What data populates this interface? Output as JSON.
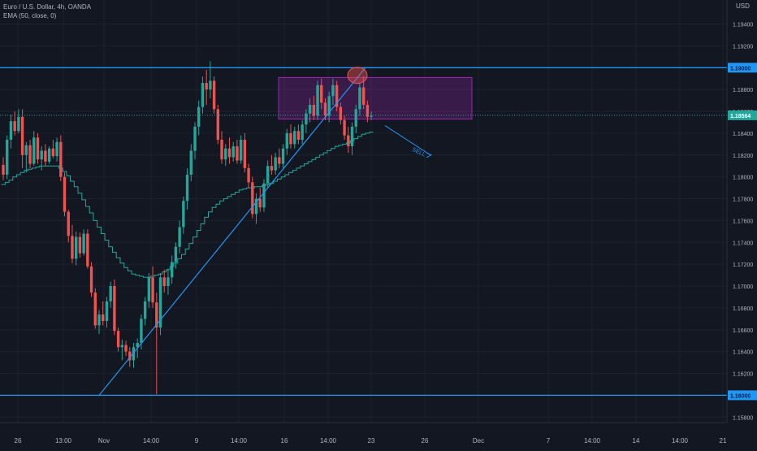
{
  "chart_data": {
    "type": "candlestick",
    "title": "Euro / U.S. Dollar, 4h, OANDA",
    "indicator": "EMA (50, close, 0)",
    "currency": "USD",
    "ylim": [
      1.1575,
      1.1962
    ],
    "y_ticks": [
      "1.19400",
      "1.19200",
      "1.18800",
      "1.18600",
      "1.18400",
      "1.18200",
      "1.18000",
      "1.17800",
      "1.17600",
      "1.17400",
      "1.17200",
      "1.17000",
      "1.16800",
      "1.16600",
      "1.16400",
      "1.16200",
      "1.15800"
    ],
    "x_labels": [
      "26",
      "13:00",
      "Nov",
      "14:00",
      "9",
      "14:00",
      "16",
      "14:00",
      "23",
      "26",
      "Dec",
      "7",
      "14:00",
      "14",
      "14:00",
      "21"
    ],
    "levels": [
      {
        "price": 1.19,
        "label": "1.19000",
        "color": "#2196f3"
      },
      {
        "price": 1.16,
        "label": "1.16000",
        "color": "#2196f3"
      }
    ],
    "last_price": {
      "value": 1.18564,
      "label": "1.18564",
      "color": "#26a69a"
    },
    "annotation": {
      "text": "SELL",
      "color": "#2196f3"
    },
    "zone": {
      "price_high": 1.1891,
      "price_low": 1.1853,
      "color": "#9c27b0"
    },
    "colors": {
      "up": "#26a69a",
      "down": "#ef5350",
      "ema": "#26a69a",
      "background": "#131722",
      "grid": "#1e222d",
      "text": "#b2b5be"
    },
    "candles": [
      [
        1.1811,
        1.1818,
        1.1797,
        1.1802
      ],
      [
        1.1802,
        1.1838,
        1.1798,
        1.1834
      ],
      [
        1.1834,
        1.1857,
        1.1826,
        1.1851
      ],
      [
        1.1851,
        1.186,
        1.1838,
        1.1842
      ],
      [
        1.1842,
        1.1862,
        1.184,
        1.1855
      ],
      [
        1.1855,
        1.1862,
        1.1808,
        1.182
      ],
      [
        1.182,
        1.1832,
        1.1804,
        1.1829
      ],
      [
        1.1829,
        1.1834,
        1.1808,
        1.1812
      ],
      [
        1.1812,
        1.1842,
        1.181,
        1.1836
      ],
      [
        1.1836,
        1.184,
        1.1812,
        1.1816
      ],
      [
        1.1816,
        1.1828,
        1.1806,
        1.1824
      ],
      [
        1.1824,
        1.183,
        1.181,
        1.1814
      ],
      [
        1.1814,
        1.1828,
        1.1812,
        1.1826
      ],
      [
        1.1826,
        1.1834,
        1.1817,
        1.1819
      ],
      [
        1.1819,
        1.1836,
        1.1814,
        1.1832
      ],
      [
        1.1832,
        1.1838,
        1.1796,
        1.18
      ],
      [
        1.18,
        1.1804,
        1.1764,
        1.1768
      ],
      [
        1.1768,
        1.177,
        1.174,
        1.1746
      ],
      [
        1.1746,
        1.1756,
        1.1721,
        1.1725
      ],
      [
        1.1725,
        1.175,
        1.1719,
        1.1745
      ],
      [
        1.1745,
        1.1749,
        1.1726,
        1.173
      ],
      [
        1.173,
        1.1752,
        1.1728,
        1.1748
      ],
      [
        1.1748,
        1.1752,
        1.1716,
        1.1718
      ],
      [
        1.1718,
        1.1722,
        1.169,
        1.1694
      ],
      [
        1.1694,
        1.1698,
        1.1661,
        1.1664
      ],
      [
        1.1664,
        1.1678,
        1.1656,
        1.1674
      ],
      [
        1.1674,
        1.1686,
        1.1664,
        1.1668
      ],
      [
        1.1668,
        1.169,
        1.1662,
        1.1686
      ],
      [
        1.1686,
        1.1704,
        1.168,
        1.17
      ],
      [
        1.17,
        1.1706,
        1.1655,
        1.1659
      ],
      [
        1.1659,
        1.1662,
        1.164,
        1.1644
      ],
      [
        1.1644,
        1.1651,
        1.1632,
        1.1646
      ],
      [
        1.1646,
        1.165,
        1.1636,
        1.164
      ],
      [
        1.164,
        1.1644,
        1.1626,
        1.1632
      ],
      [
        1.1632,
        1.1648,
        1.1625,
        1.1644
      ],
      [
        1.1644,
        1.1652,
        1.1634,
        1.1648
      ],
      [
        1.1648,
        1.1674,
        1.1642,
        1.167
      ],
      [
        1.167,
        1.169,
        1.1664,
        1.1686
      ],
      [
        1.1686,
        1.1712,
        1.168,
        1.1708
      ],
      [
        1.1708,
        1.1718,
        1.168,
        1.1685
      ],
      [
        1.1685,
        1.1694,
        1.1601,
        1.1662
      ],
      [
        1.1662,
        1.1712,
        1.1655,
        1.1708
      ],
      [
        1.1708,
        1.1715,
        1.1694,
        1.17
      ],
      [
        1.17,
        1.1716,
        1.1692,
        1.1708
      ],
      [
        1.1708,
        1.1728,
        1.1702,
        1.1722
      ],
      [
        1.1722,
        1.174,
        1.1716,
        1.1736
      ],
      [
        1.1736,
        1.176,
        1.173,
        1.1754
      ],
      [
        1.1754,
        1.1782,
        1.1748,
        1.1778
      ],
      [
        1.1778,
        1.1808,
        1.177,
        1.1802
      ],
      [
        1.1802,
        1.183,
        1.1796,
        1.1824
      ],
      [
        1.1824,
        1.185,
        1.1816,
        1.1846
      ],
      [
        1.1846,
        1.187,
        1.1838,
        1.1864
      ],
      [
        1.1864,
        1.1892,
        1.1858,
        1.1886
      ],
      [
        1.1886,
        1.1898,
        1.1866,
        1.188
      ],
      [
        1.188,
        1.1906,
        1.1872,
        1.1888
      ],
      [
        1.1888,
        1.1892,
        1.1858,
        1.1862
      ],
      [
        1.1862,
        1.1866,
        1.183,
        1.1834
      ],
      [
        1.1834,
        1.1842,
        1.1812,
        1.1816
      ],
      [
        1.1816,
        1.183,
        1.181,
        1.1826
      ],
      [
        1.1826,
        1.1836,
        1.1812,
        1.1818
      ],
      [
        1.1818,
        1.1832,
        1.1814,
        1.1828
      ],
      [
        1.1828,
        1.1834,
        1.1812,
        1.1815
      ],
      [
        1.1815,
        1.1838,
        1.1812,
        1.1834
      ],
      [
        1.1834,
        1.184,
        1.1804,
        1.1808
      ],
      [
        1.1808,
        1.1812,
        1.179,
        1.1795
      ],
      [
        1.1795,
        1.18,
        1.1762,
        1.1766
      ],
      [
        1.1766,
        1.1785,
        1.1757,
        1.178
      ],
      [
        1.178,
        1.179,
        1.1768,
        1.1772
      ],
      [
        1.1772,
        1.1798,
        1.1768,
        1.1794
      ],
      [
        1.1794,
        1.1815,
        1.179,
        1.181
      ],
      [
        1.181,
        1.182,
        1.1802,
        1.1806
      ],
      [
        1.1806,
        1.1822,
        1.1802,
        1.1818
      ],
      [
        1.1818,
        1.1826,
        1.1808,
        1.1812
      ],
      [
        1.1812,
        1.183,
        1.1808,
        1.1826
      ],
      [
        1.1826,
        1.1844,
        1.182,
        1.184
      ],
      [
        1.184,
        1.1848,
        1.1826,
        1.183
      ],
      [
        1.183,
        1.1846,
        1.1826,
        1.1842
      ],
      [
        1.1842,
        1.1848,
        1.183,
        1.1834
      ],
      [
        1.1834,
        1.1852,
        1.183,
        1.1848
      ],
      [
        1.1848,
        1.1862,
        1.184,
        1.1858
      ],
      [
        1.1858,
        1.1872,
        1.185,
        1.1866
      ],
      [
        1.1866,
        1.1874,
        1.1852,
        1.1856
      ],
      [
        1.1856,
        1.1888,
        1.1852,
        1.1884
      ],
      [
        1.1884,
        1.189,
        1.1862,
        1.1868
      ],
      [
        1.1868,
        1.1872,
        1.1852,
        1.1856
      ],
      [
        1.1856,
        1.1878,
        1.185,
        1.1874
      ],
      [
        1.1874,
        1.189,
        1.1866,
        1.1884
      ],
      [
        1.1884,
        1.1888,
        1.186,
        1.1864
      ],
      [
        1.1864,
        1.1868,
        1.1848,
        1.1852
      ],
      [
        1.1852,
        1.1856,
        1.1834,
        1.1838
      ],
      [
        1.1838,
        1.1846,
        1.1822,
        1.1828
      ],
      [
        1.1828,
        1.185,
        1.182,
        1.1846
      ],
      [
        1.1846,
        1.1866,
        1.184,
        1.1862
      ],
      [
        1.1862,
        1.1886,
        1.1856,
        1.1882
      ],
      [
        1.1882,
        1.1892,
        1.1862,
        1.1866
      ],
      [
        1.1866,
        1.187,
        1.185,
        1.1855
      ],
      [
        1.1855,
        1.186,
        1.1852,
        1.1856
      ]
    ],
    "ema": [
      1.1793,
      1.1795,
      1.1797,
      1.18,
      1.1802,
      1.1804,
      1.1806,
      1.1807,
      1.1808,
      1.1809,
      1.181,
      1.181,
      1.181,
      1.181,
      1.181,
      1.1808,
      1.1805,
      1.1801,
      1.1796,
      1.1791,
      1.1785,
      1.1779,
      1.1773,
      1.1767,
      1.176,
      1.1754,
      1.1748,
      1.1742,
      1.1736,
      1.1731,
      1.1726,
      1.1721,
      1.1717,
      1.1714,
      1.1711,
      1.171,
      1.1709,
      1.1708,
      1.1708,
      1.1709,
      1.171,
      1.1711,
      1.1713,
      1.1715,
      1.1718,
      1.1721,
      1.1725,
      1.1729,
      1.1734,
      1.1739,
      1.1745,
      1.1751,
      1.1757,
      1.1763,
      1.1768,
      1.1772,
      1.1775,
      1.1778,
      1.178,
      1.1782,
      1.1784,
      1.1786,
      1.1788,
      1.1789,
      1.179,
      1.179,
      1.1791,
      1.1791,
      1.1792,
      1.1793,
      1.1794,
      1.1796,
      1.1798,
      1.18,
      1.1802,
      1.1804,
      1.1806,
      1.1808,
      1.181,
      1.1812,
      1.1814,
      1.1816,
      1.1818,
      1.182,
      1.1822,
      1.1824,
      1.1826,
      1.1828,
      1.1829,
      1.183,
      1.1831,
      1.1833,
      1.1835,
      1.1837,
      1.1839,
      1.184,
      1.1841
    ]
  }
}
